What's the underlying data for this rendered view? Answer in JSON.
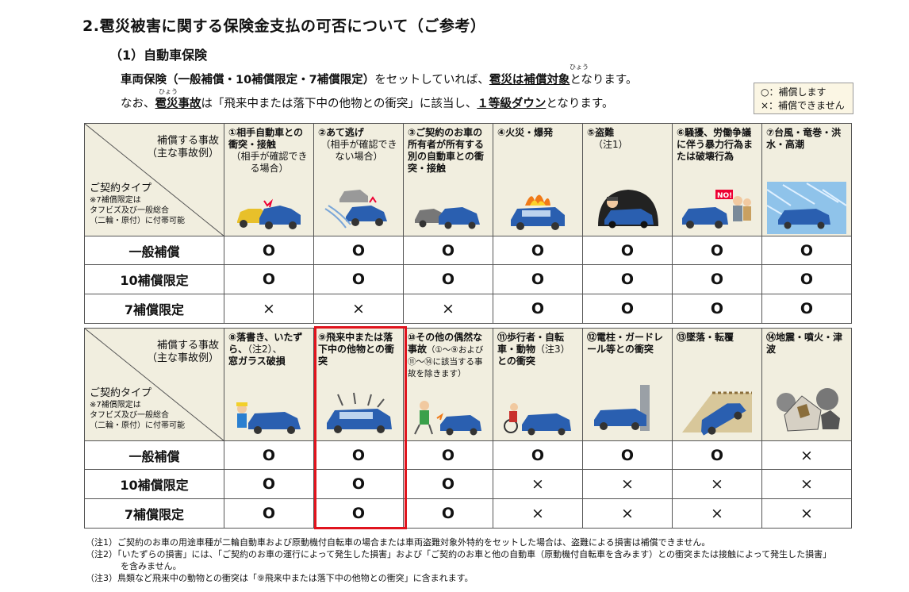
{
  "title": "2.雹災被害に関する保険金支払の可否について（ご参考）",
  "subtitle": "（1）自動車保険",
  "ruby": "ひょう",
  "intro": {
    "l1_a": "車両保険",
    "l1_b": "（一般補償・10補償限定・7補償限定）",
    "l1_c": "をセットしていれば、",
    "l1_d": "雹災は補償対象",
    "l1_e": "となります。",
    "l2_a": "なお、",
    "l2_b": "雹災事故",
    "l2_c": "は「飛来中または落下中の他物との衝突」に該当し、",
    "l2_d": "１等級ダウン",
    "l2_e": "となります。"
  },
  "legend": {
    "yes": "○：補償します",
    "no": "×：補償できません"
  },
  "header": {
    "accident_label_1": "補償する事故",
    "accident_label_2": "（主な事故例）",
    "type_label": "ご契約タイプ",
    "type_note_1": "※7補償限定は",
    "type_note_2": "タフビズ及び一般総合",
    "type_note_3": "（二輪・原付）に付帯可能"
  },
  "row_labels": [
    "一般補償",
    "10補償限定",
    "7補償限定"
  ],
  "table1": {
    "categories": [
      {
        "title": "①相手自動車との衝突・接触",
        "sub": "（相手が確認できる場合）",
        "icon": "car-collision-icon"
      },
      {
        "title": "②あて逃げ",
        "sub": "（相手が確認できない場合）",
        "icon": "hit-and-run-icon"
      },
      {
        "title": "③ご契約のお車の所有者が所有する別の自動車との衝突・接触",
        "sub": "",
        "icon": "own-car-collision-icon"
      },
      {
        "title": "④火災・爆発",
        "sub": "",
        "icon": "car-fire-icon"
      },
      {
        "title": "⑤盗難",
        "sub": "（注1）",
        "icon": "car-theft-icon"
      },
      {
        "title": "⑥騒擾、労働争議に伴う暴力行為または破壊行為",
        "sub": "",
        "icon": "riot-icon"
      },
      {
        "title": "⑦台風・竜巻・洪水・高潮",
        "sub": "",
        "icon": "storm-icon"
      }
    ],
    "rows": [
      [
        "O",
        "O",
        "O",
        "O",
        "O",
        "O",
        "O"
      ],
      [
        "O",
        "O",
        "O",
        "O",
        "O",
        "O",
        "O"
      ],
      [
        "×",
        "×",
        "×",
        "O",
        "O",
        "O",
        "O"
      ]
    ]
  },
  "table2": {
    "categories": [
      {
        "title": "⑧落書き、いたずら、",
        "sub": "（注2）、",
        "title2": "窓ガラス破損",
        "icon": "graffiti-icon"
      },
      {
        "title": "⑨飛来中または落下中の他物との衝突",
        "sub": "",
        "icon": "hail-impact-icon"
      },
      {
        "title": "⑩その他の偶然な事故",
        "sub": "（①～⑨および⑪～⑭に該当する事故を除きます）",
        "icon": "other-accident-icon"
      },
      {
        "title": "⑪歩行者・自転車・動物",
        "sub": "（注3）",
        "title2": "との衝突",
        "icon": "pedestrian-collision-icon"
      },
      {
        "title": "⑫電柱・ガードレール等との衝突",
        "sub": "",
        "icon": "pole-collision-icon"
      },
      {
        "title": "⑬墜落・転覆",
        "sub": "",
        "icon": "rollover-icon"
      },
      {
        "title": "⑭地震・噴火・津波",
        "sub": "",
        "icon": "earthquake-icon"
      }
    ],
    "rows": [
      [
        "O",
        "O",
        "O",
        "O",
        "O",
        "O",
        "×"
      ],
      [
        "O",
        "O",
        "O",
        "×",
        "×",
        "×",
        "×"
      ],
      [
        "O",
        "O",
        "O",
        "×",
        "×",
        "×",
        "×"
      ]
    ]
  },
  "notes": [
    "（注1）ご契約のお車の用途車種が二輪自動車および原動機付自転車の場合または車両盗難対象外特約をセットした場合は、盗難による損害は補償できません。",
    "（注2）「いたずらの損害」には、「ご契約のお車の運行によって発生した損害」および「ご契約のお車と他の自動車（原動機付自転車を含みます）との衝突または接触によって発生した損害」",
    "　　　　を含みません。",
    "（注3）鳥類など飛来中の動物との衝突は「⑨飛来中または落下中の他物との衝突」に含まれます。"
  ],
  "colors": {
    "header_bg": "#f1eedf",
    "highlight": "#e0141e",
    "car": "#2a5fb0"
  }
}
